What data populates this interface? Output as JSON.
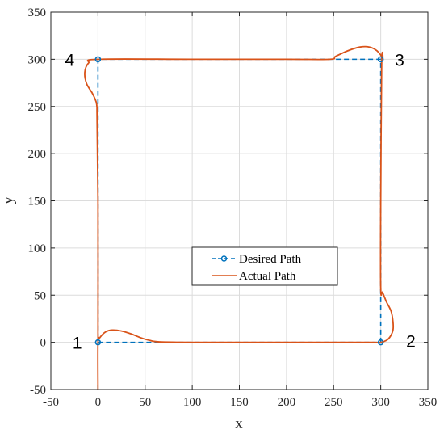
{
  "chart_data": {
    "type": "line",
    "title": "",
    "xlabel": "x",
    "ylabel": "y",
    "xlim": [
      -50,
      350
    ],
    "ylim": [
      -50,
      350
    ],
    "xticks": [
      -50,
      0,
      50,
      100,
      150,
      200,
      250,
      300,
      350
    ],
    "yticks": [
      -50,
      0,
      50,
      100,
      150,
      200,
      250,
      300,
      350
    ],
    "grid": true,
    "legend_position": "center",
    "colors": {
      "desired": "#0072BD",
      "actual": "#D95319"
    },
    "series": [
      {
        "name": "Desired Path",
        "style": "dashed-circle-markers",
        "x": [
          0,
          300,
          300,
          0,
          0
        ],
        "y": [
          0,
          0,
          300,
          300,
          0
        ]
      },
      {
        "name": "Actual Path",
        "style": "solid",
        "x": [
          0,
          0,
          2,
          8,
          15,
          25,
          35,
          45,
          55,
          65,
          100,
          200,
          280,
          292,
          300,
          306,
          310,
          313,
          313,
          311,
          306,
          302,
          300,
          300,
          301,
          302,
          296,
          288,
          278,
          265,
          252,
          246,
          200,
          100,
          0,
          -10,
          -14,
          -12,
          -6,
          -2,
          -1,
          -1,
          0,
          0
        ],
        "y": [
          -50,
          0,
          5,
          11,
          13,
          12,
          9,
          5,
          2,
          0.5,
          0,
          0,
          0,
          0,
          0,
          2,
          6,
          13,
          22,
          33,
          43,
          53,
          58,
          150,
          295,
          301,
          309,
          313,
          313,
          309,
          303,
          300,
          300,
          300,
          300,
          296,
          286,
          274,
          264,
          255,
          248,
          240,
          150,
          0
        ]
      }
    ],
    "annotations": [
      {
        "text": "1",
        "x": -22,
        "y": 0
      },
      {
        "text": "2",
        "x": 332,
        "y": 2
      },
      {
        "text": "3",
        "x": 320,
        "y": 300
      },
      {
        "text": "4",
        "x": -30,
        "y": 300
      }
    ]
  }
}
